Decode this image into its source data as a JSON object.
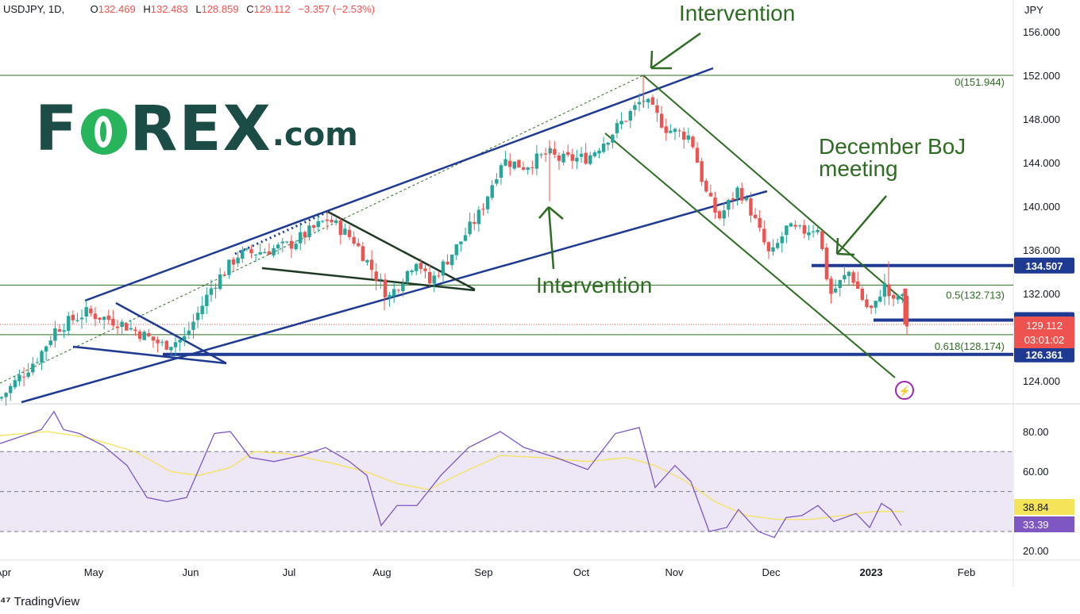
{
  "header": {
    "symbol": "USDJPY, 1D,",
    "open_label": "O",
    "open": "132.469",
    "high_label": "H",
    "high": "132.483",
    "low_label": "L",
    "low": "128.859",
    "close_label": "C",
    "close": "129.112",
    "change": "−3.357 (−2.53%)"
  },
  "brand": {
    "name_left": "F",
    "name_right": "REX",
    "suffix": ".com"
  },
  "footer": {
    "platform": "TradingView"
  },
  "colors": {
    "up": "#26a69a",
    "down": "#ef5350",
    "channel": "#1f3a93",
    "annotation": "#2e6b23",
    "rsi": "#7e57c2",
    "rsi_ma": "#f5e35a",
    "rsi_band": "#ede7f6",
    "last_price": "#ef5350"
  },
  "chart_data": {
    "type": "candlestick",
    "symbol": "USDJPY",
    "timeframe": "1D",
    "ylim": [
      122.0,
      157.5
    ],
    "y_ticks": [
      "156.000",
      "152.000",
      "148.000",
      "144.000",
      "140.000",
      "136.000",
      "132.000",
      "124.000"
    ],
    "y_unit": "JPY",
    "x_ticks": [
      "Apr",
      "May",
      "Jun",
      "Jul",
      "Aug",
      "Sep",
      "Oct",
      "Nov",
      "Dec",
      "2023",
      "Feb"
    ],
    "price_path": [
      [
        0,
        122.3
      ],
      [
        50,
        126.3
      ],
      [
        70,
        128.7
      ],
      [
        108,
        130.2
      ],
      [
        150,
        129.3
      ],
      [
        205,
        127.2
      ],
      [
        232,
        127.8
      ],
      [
        268,
        132.7
      ],
      [
        300,
        135.5
      ],
      [
        330,
        135.8
      ],
      [
        365,
        136.4
      ],
      [
        413,
        138.8
      ],
      [
        446,
        136.8
      ],
      [
        490,
        131.6
      ],
      [
        525,
        135.2
      ],
      [
        540,
        132.8
      ],
      [
        575,
        136.2
      ],
      [
        605,
        139.4
      ],
      [
        632,
        144.2
      ],
      [
        660,
        143.6
      ],
      [
        690,
        144.8
      ],
      [
        705,
        144.2
      ],
      [
        740,
        144.4
      ],
      [
        770,
        146.6
      ],
      [
        810,
        149.8
      ],
      [
        840,
        147.0
      ],
      [
        870,
        146.3
      ],
      [
        888,
        141.3
      ],
      [
        905,
        138.8
      ],
      [
        930,
        141.6
      ],
      [
        945,
        139.6
      ],
      [
        970,
        135.2
      ],
      [
        990,
        137.9
      ],
      [
        1010,
        137.6
      ],
      [
        1030,
        138.1
      ],
      [
        1045,
        131.8
      ],
      [
        1070,
        134.0
      ],
      [
        1090,
        130.8
      ],
      [
        1100,
        130.3
      ],
      [
        1112,
        132.9
      ],
      [
        1125,
        131.0
      ],
      [
        1135,
        132.3
      ],
      [
        1140,
        129.1
      ]
    ],
    "candles_approx": 204,
    "levels": [
      {
        "label": "134.507",
        "value": 134.507
      },
      {
        "label": "129.504",
        "value": 129.504
      },
      {
        "label": "126.361",
        "value": 126.361
      }
    ],
    "last_price": {
      "label": "129.112",
      "value": 129.112,
      "countdown": "03:01:02"
    },
    "fibonacci": [
      {
        "label": "0(151.944)",
        "value": 151.944
      },
      {
        "label": "0.5(132.713)",
        "value": 132.713
      },
      {
        "label": "0.618(128.174)",
        "value": 128.174
      }
    ],
    "annotations": {
      "top": "Intervention",
      "middle": "Intervention",
      "boj_line1": "December BoJ",
      "boj_line2": "meeting"
    },
    "rsi": {
      "ylim": [
        15,
        93
      ],
      "y_ticks": [
        "80.00",
        "60.00",
        "20.00"
      ],
      "band": [
        30,
        70
      ],
      "middle": 50,
      "rsi_value_label": "33.39",
      "ma_value_label": "38.84",
      "rsi_path": [
        [
          0,
          74
        ],
        [
          30,
          78
        ],
        [
          52,
          81
        ],
        [
          68,
          90
        ],
        [
          80,
          81
        ],
        [
          100,
          79
        ],
        [
          130,
          73
        ],
        [
          160,
          63
        ],
        [
          185,
          47
        ],
        [
          210,
          45
        ],
        [
          235,
          47
        ],
        [
          270,
          79
        ],
        [
          290,
          80
        ],
        [
          315,
          67
        ],
        [
          345,
          65
        ],
        [
          380,
          68
        ],
        [
          410,
          72
        ],
        [
          440,
          65
        ],
        [
          462,
          58
        ],
        [
          480,
          33
        ],
        [
          500,
          43
        ],
        [
          525,
          43
        ],
        [
          555,
          58
        ],
        [
          590,
          72
        ],
        [
          630,
          80
        ],
        [
          660,
          72
        ],
        [
          700,
          67
        ],
        [
          740,
          61
        ],
        [
          775,
          79
        ],
        [
          805,
          82
        ],
        [
          825,
          52
        ],
        [
          850,
          63
        ],
        [
          870,
          55
        ],
        [
          893,
          30
        ],
        [
          915,
          32
        ],
        [
          930,
          41
        ],
        [
          955,
          30
        ],
        [
          975,
          27
        ],
        [
          990,
          37
        ],
        [
          1010,
          38
        ],
        [
          1030,
          43
        ],
        [
          1050,
          35
        ],
        [
          1078,
          39
        ],
        [
          1095,
          32
        ],
        [
          1110,
          44
        ],
        [
          1122,
          41
        ],
        [
          1135,
          33
        ]
      ],
      "ma_path": [
        [
          0,
          78
        ],
        [
          60,
          80
        ],
        [
          110,
          77
        ],
        [
          170,
          70
        ],
        [
          215,
          60
        ],
        [
          250,
          58
        ],
        [
          290,
          62
        ],
        [
          320,
          70
        ],
        [
          360,
          69
        ],
        [
          420,
          64
        ],
        [
          460,
          60
        ],
        [
          500,
          54
        ],
        [
          540,
          51
        ],
        [
          580,
          59
        ],
        [
          630,
          68
        ],
        [
          680,
          67
        ],
        [
          740,
          65
        ],
        [
          790,
          67
        ],
        [
          825,
          63
        ],
        [
          860,
          56
        ],
        [
          900,
          45
        ],
        [
          940,
          38
        ],
        [
          980,
          36
        ],
        [
          1020,
          36
        ],
        [
          1060,
          38
        ],
        [
          1100,
          40
        ],
        [
          1138,
          40
        ]
      ]
    }
  }
}
